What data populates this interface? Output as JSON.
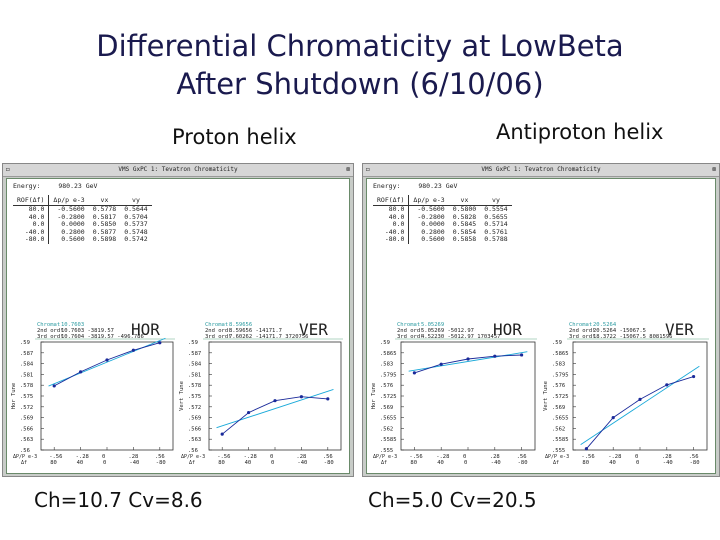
{
  "slide": {
    "title_line1": "Differential Chromaticity at LowBeta",
    "title_line2": "After Shutdown (6/10/06)",
    "proton_label": "Proton helix",
    "antiproton_label": "Antiproton helix",
    "proton_caption": "Ch=10.7 Cv=8.6",
    "antiproton_caption": "Ch=5.0 Cv=20.5"
  },
  "windows": [
    {
      "title": "VMS GxPC 1: Tevatron Chromaticity",
      "energy_label": "Energy:",
      "energy_value": "980.23 GeV",
      "table": {
        "headers": [
          "ROF(Δf)",
          "Δp/p e-3",
          "vx",
          "vy"
        ],
        "rows": [
          [
            "80.0",
            "-0.5600",
            "0.5778",
            "0.5644"
          ],
          [
            "40.0",
            "-0.2800",
            "0.5817",
            "0.5704"
          ],
          [
            "0.0",
            "0.0000",
            "0.5850",
            "0.5737"
          ],
          [
            "-40.0",
            "0.2800",
            "0.5877",
            "0.5748"
          ],
          [
            "-80.0",
            "0.5600",
            "0.5898",
            "0.5742"
          ]
        ]
      },
      "plots": [
        {
          "name": "HOR",
          "info": [
            "Chromat",
            "2nd ord!",
            "3rd ord!"
          ],
          "info_values": [
            "10.7603",
            "10.7603  -3819.57",
            "10.7604  -3819.57  -496.786"
          ],
          "ylabel": "Hor Tune",
          "yticks": [
            ".59",
            ".587",
            ".584",
            ".581",
            ".578",
            ".575",
            ".572",
            ".569",
            ".566",
            ".563",
            ".56"
          ],
          "xticks": [
            ".56",
            ".28",
            "0",
            ".28",
            ".56"
          ],
          "xticks_sign": [
            "-",
            "-",
            "",
            "",
            ""
          ],
          "xticks2": [
            "80",
            "40",
            "0",
            "-40",
            "-80"
          ],
          "xunit": "ΔP/P e-3",
          "xunit2": "Δf"
        },
        {
          "name": "VER",
          "info": [
            "Chromat",
            "2nd ord!",
            "3rd ord!"
          ],
          "info_values": [
            "8.59656",
            "8.59656  -14171.7",
            "7.60262  -14171.7  3720756"
          ],
          "ylabel": "Vert Tune",
          "yticks": [
            ".59",
            ".587",
            ".584",
            ".581",
            ".578",
            ".575",
            ".572",
            ".569",
            ".566",
            ".563",
            ".56"
          ],
          "xticks": [
            ".56",
            ".28",
            "0",
            ".28",
            ".56"
          ],
          "xticks_sign": [
            "-",
            "-",
            "",
            "",
            ""
          ],
          "xticks2": [
            "80",
            "40",
            "0",
            "-40",
            "-80"
          ],
          "xunit": "ΔP/P e-3",
          "xunit2": "Δf"
        }
      ]
    },
    {
      "title": "VMS GxPC 1: Tevatron Chromaticity",
      "energy_label": "Energy:",
      "energy_value": "980.23 GeV",
      "table": {
        "headers": [
          "ROF(Δf)",
          "Δp/p e-3",
          "vx",
          "vy"
        ],
        "rows": [
          [
            "80.0",
            "-0.5600",
            "0.5800",
            "0.5554"
          ],
          [
            "40.0",
            "-0.2800",
            "0.5828",
            "0.5655"
          ],
          [
            "0.0",
            "0.0000",
            "0.5845",
            "0.5714"
          ],
          [
            "-40.0",
            "0.2800",
            "0.5854",
            "0.5761"
          ],
          [
            "-80.0",
            "0.5600",
            "0.5858",
            "0.5788"
          ]
        ]
      },
      "plots": [
        {
          "name": "HOR",
          "info": [
            "Chromat",
            "2nd ord!",
            "3rd ord!"
          ],
          "info_values": [
            "5.05269",
            "5.05269  -5012.97",
            "4.52230  -5012.97  1703457"
          ],
          "ylabel": "Hor Tune",
          "yticks": [
            ".59",
            ".5865",
            ".583",
            ".5795",
            ".576",
            ".5725",
            ".569",
            ".5655",
            ".562",
            ".5585",
            ".555"
          ],
          "xticks": [
            ".56",
            ".28",
            "0",
            ".28",
            ".56"
          ],
          "xticks_sign": [
            "-",
            "-",
            "",
            "",
            ""
          ],
          "xticks2": [
            "80",
            "40",
            "0",
            "-40",
            "-80"
          ],
          "xunit": "ΔP/P e-3",
          "xunit2": "Δf"
        },
        {
          "name": "VER",
          "info": [
            "Chromat",
            "2nd ord!",
            "3rd ord!"
          ],
          "info_values": [
            "20.5264",
            "20.5264  -15067.5",
            "18.3722  -15067.5  8081596"
          ],
          "ylabel": "Vert Tune",
          "yticks": [
            ".59",
            ".5865",
            ".583",
            ".5795",
            ".576",
            ".5725",
            ".569",
            ".5655",
            ".562",
            ".5585",
            ".555"
          ],
          "xticks": [
            ".56",
            ".28",
            "0",
            ".28",
            ".56"
          ],
          "xticks_sign": [
            "-",
            "-",
            "",
            "",
            ""
          ],
          "xticks2": [
            "80",
            "40",
            "0",
            "-40",
            "-80"
          ],
          "xunit": "ΔP/P e-3",
          "xunit2": "Δf"
        }
      ]
    }
  ],
  "chart_data": [
    {
      "type": "scatter",
      "series": [
        {
          "x": [
            -0.56,
            -0.28,
            0,
            0.28,
            0.56
          ],
          "y": [
            0.5778,
            0.5817,
            0.585,
            0.5877,
            0.5898
          ]
        }
      ],
      "ylabel": "Hor Tune",
      "xlabel": "ΔP/P e-3",
      "xlim": [
        -0.7,
        0.7
      ],
      "ylim": [
        0.56,
        0.59
      ]
    },
    {
      "type": "scatter",
      "series": [
        {
          "x": [
            -0.56,
            -0.28,
            0,
            0.28,
            0.56
          ],
          "y": [
            0.5644,
            0.5704,
            0.5737,
            0.5748,
            0.5742
          ]
        }
      ],
      "ylabel": "Vert Tune",
      "xlabel": "ΔP/P e-3",
      "xlim": [
        -0.7,
        0.7
      ],
      "ylim": [
        0.56,
        0.59
      ]
    },
    {
      "type": "scatter",
      "series": [
        {
          "x": [
            -0.56,
            -0.28,
            0,
            0.28,
            0.56
          ],
          "y": [
            0.58,
            0.5828,
            0.5845,
            0.5854,
            0.5858
          ]
        }
      ],
      "ylabel": "Hor Tune",
      "xlabel": "ΔP/P e-3",
      "xlim": [
        -0.7,
        0.7
      ],
      "ylim": [
        0.555,
        0.59
      ]
    },
    {
      "type": "scatter",
      "series": [
        {
          "x": [
            -0.56,
            -0.28,
            0,
            0.28,
            0.56
          ],
          "y": [
            0.5554,
            0.5655,
            0.5714,
            0.5761,
            0.5788
          ]
        }
      ],
      "ylabel": "Vert Tune",
      "xlabel": "ΔP/P e-3",
      "xlim": [
        -0.7,
        0.7
      ],
      "ylim": [
        0.555,
        0.59
      ]
    }
  ],
  "colors": {
    "fit_line": "#19a9d9",
    "data_line": "#1a2a9a",
    "plot_header": "#2a9aa0",
    "window_bg": "#c8ccc8"
  }
}
